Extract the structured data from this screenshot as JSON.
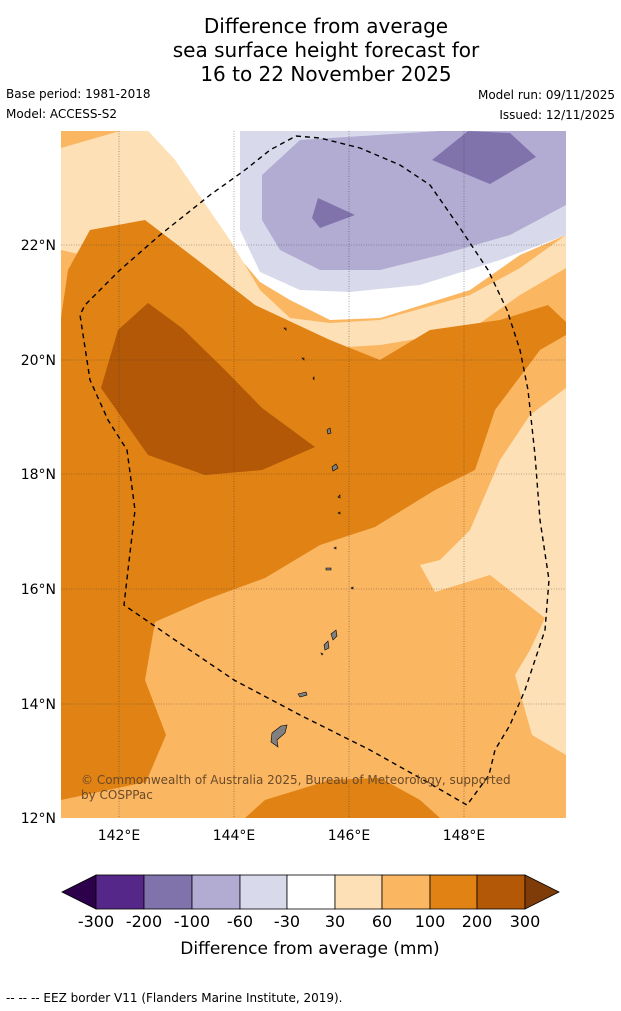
{
  "title": {
    "line1": "Difference from average",
    "line2": "sea surface height forecast for",
    "line3": "16 to 22 November 2025"
  },
  "meta": {
    "base_period": "Base period: 1981-2018",
    "model": "Model: ACCESS-S2",
    "model_run": "Model run: 09/11/2025",
    "issued": "Issued: 12/11/2025"
  },
  "map": {
    "lat_labels": [
      "22°N",
      "20°N",
      "18°N",
      "16°N",
      "14°N",
      "12°N"
    ],
    "lon_labels": [
      "142°E",
      "144°E",
      "146°E",
      "148°E"
    ],
    "copyright_line1": "© Commonwealth of Australia 2025, Bureau of Meteorology, supported",
    "copyright_line2": "by COSPPac",
    "colors": {
      "neg300": "#2d004b",
      "neg200": "#542788",
      "neg100": "#8073ac",
      "neg60": "#b2abd2",
      "neg30": "#d8daeb",
      "zero": "#ffffff",
      "pos30": "#fee0b6",
      "pos60": "#fbb661",
      "pos100": "#e08214",
      "pos200": "#b35806",
      "pos300": "#7f3b08",
      "land": "#808080"
    }
  },
  "colorbar": {
    "tick_labels": [
      "-300",
      "-200",
      "-100",
      "-60",
      "-30",
      "30",
      "60",
      "100",
      "200",
      "300"
    ],
    "label": "Difference from average (mm)"
  },
  "footer": {
    "legend_text": "--  --  -- EEZ border V11 (Flanders Marine Institute, 2019)."
  }
}
